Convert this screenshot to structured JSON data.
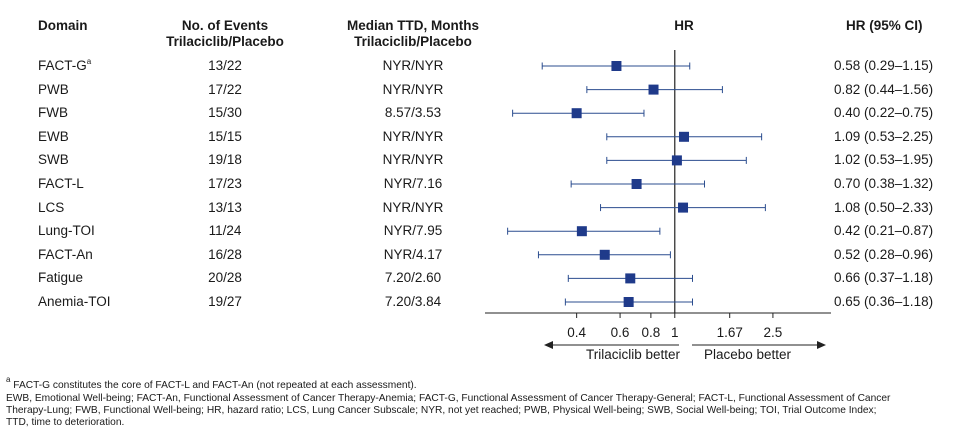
{
  "headers": {
    "domain": "Domain",
    "events_line1": "No. of Events",
    "events_line2": "Trilaciclib/Placebo",
    "ttd_line1": "Median TTD, Months",
    "ttd_line2": "Trilaciclib/Placebo",
    "hr": "HR",
    "hr_ci": "HR (95% CI)"
  },
  "rows": [
    {
      "domain": "FACT-G",
      "sup": "a",
      "events": "13/22",
      "ttd": "NYR/NYR",
      "hr_text": "0.58 (0.29–1.15)"
    },
    {
      "domain": "PWB",
      "sup": "",
      "events": "17/22",
      "ttd": "NYR/NYR",
      "hr_text": "0.82 (0.44–1.56)"
    },
    {
      "domain": "FWB",
      "sup": "",
      "events": "15/30",
      "ttd": "8.57/3.53",
      "hr_text": "0.40 (0.22–0.75)"
    },
    {
      "domain": "EWB",
      "sup": "",
      "events": "15/15",
      "ttd": "NYR/NYR",
      "hr_text": "1.09 (0.53–2.25)"
    },
    {
      "domain": "SWB",
      "sup": "",
      "events": "19/18",
      "ttd": "NYR/NYR",
      "hr_text": "1.02 (0.53–1.95)"
    },
    {
      "domain": "FACT-L",
      "sup": "",
      "events": "17/23",
      "ttd": "NYR/7.16",
      "hr_text": "0.70 (0.38–1.32)"
    },
    {
      "domain": "LCS",
      "sup": "",
      "events": "13/13",
      "ttd": "NYR/NYR",
      "hr_text": "1.08 (0.50–2.33)"
    },
    {
      "domain": "Lung-TOI",
      "sup": "",
      "events": "11/24",
      "ttd": "NYR/7.95",
      "hr_text": "0.42 (0.21–0.87)"
    },
    {
      "domain": "FACT-An",
      "sup": "",
      "events": "16/28",
      "ttd": "NYR/4.17",
      "hr_text": "0.52 (0.28–0.96)"
    },
    {
      "domain": "Fatigue",
      "sup": "",
      "events": "20/28",
      "ttd": "7.20/2.60",
      "hr_text": "0.66 (0.37–1.18)"
    },
    {
      "domain": "Anemia-TOI",
      "sup": "",
      "events": "19/27",
      "ttd": "7.20/3.84",
      "hr_text": "0.65 (0.36–1.18)"
    }
  ],
  "chart_data": {
    "type": "forest",
    "title": "HR",
    "x_scale": "log",
    "xlim": [
      0.17,
      4.3
    ],
    "reference_line": 1,
    "x_ticks": [
      {
        "value": 0.4,
        "label": "0.4"
      },
      {
        "value": 0.6,
        "label": "0.6"
      },
      {
        "value": 0.8,
        "label": "0.8"
      },
      {
        "value": 1,
        "label": "1"
      },
      {
        "value": 1.67,
        "label": "1.67"
      },
      {
        "value": 2.5,
        "label": "2.5"
      }
    ],
    "series": [
      {
        "name": "FACT-G",
        "hr": 0.58,
        "lower": 0.29,
        "upper": 1.15
      },
      {
        "name": "PWB",
        "hr": 0.82,
        "lower": 0.44,
        "upper": 1.56
      },
      {
        "name": "FWB",
        "hr": 0.4,
        "lower": 0.22,
        "upper": 0.75
      },
      {
        "name": "EWB",
        "hr": 1.09,
        "lower": 0.53,
        "upper": 2.25
      },
      {
        "name": "SWB",
        "hr": 1.02,
        "lower": 0.53,
        "upper": 1.95
      },
      {
        "name": "FACT-L",
        "hr": 0.7,
        "lower": 0.38,
        "upper": 1.32
      },
      {
        "name": "LCS",
        "hr": 1.08,
        "lower": 0.5,
        "upper": 2.33
      },
      {
        "name": "Lung-TOI",
        "hr": 0.42,
        "lower": 0.21,
        "upper": 0.87
      },
      {
        "name": "FACT-An",
        "hr": 0.52,
        "lower": 0.28,
        "upper": 0.96
      },
      {
        "name": "Fatigue",
        "hr": 0.66,
        "lower": 0.37,
        "upper": 1.18
      },
      {
        "name": "Anemia-TOI",
        "hr": 0.65,
        "lower": 0.36,
        "upper": 1.18
      }
    ],
    "direction_left": "Trilaciclib better",
    "direction_right": "Placebo better",
    "marker_color": "#1f3a8a",
    "line_color": "#2b4d8f"
  },
  "footnotes": {
    "a": "FACT-G constitutes the core of FACT-L and FACT-An (not repeated at each assessment).",
    "abbr1": "EWB, Emotional Well-being; FACT-An, Functional Assessment of Cancer Therapy-Anemia; FACT-G, Functional Assessment of Cancer Therapy-General; FACT-L, Functional Assessment of Cancer",
    "abbr2": "Therapy-Lung; FWB, Functional Well-being; HR, hazard ratio; LCS, Lung Cancer Subscale; NYR, not yet reached; PWB, Physical Well-being; SWB, Social Well-being; TOI, Trial Outcome Index;",
    "abbr3": "TTD, time to deterioration.",
    "a_marker": "a"
  }
}
